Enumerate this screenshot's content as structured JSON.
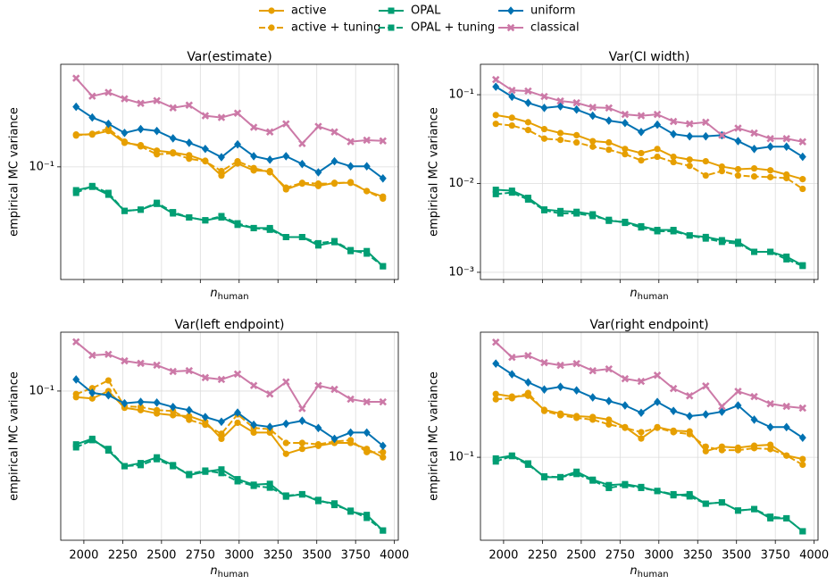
{
  "chart_data": [
    {
      "type": "line",
      "title": "Var(estimate)",
      "xlabel": [
        "n",
        "human"
      ],
      "ylabel": "empirical MC variance",
      "log_y": true,
      "grid": true,
      "show_xtick_labels": false,
      "x": [
        1950,
        2054,
        2158,
        2262,
        2366,
        2470,
        2574,
        2678,
        2782,
        2886,
        2990,
        3094,
        3198,
        3302,
        3406,
        3510,
        3614,
        3718,
        3822,
        3926
      ],
      "xlim": [
        1851,
        4025
      ],
      "xticks": [
        2000,
        2250,
        2500,
        2750,
        3000,
        3250,
        3500,
        3750,
        4000
      ],
      "ylim": [
        0.0145,
        0.58
      ],
      "yticks": [
        {
          "value": 0.1,
          "label": "10⁻¹"
        }
      ],
      "series": [
        {
          "name": "active",
          "color": "#e69f00",
          "linestyle": "solid",
          "marker": "circle",
          "values": [
            0.174,
            0.174,
            0.185,
            0.151,
            0.145,
            0.132,
            0.128,
            0.122,
            0.111,
            0.086,
            0.106,
            0.094,
            0.093,
            0.068,
            0.075,
            0.072,
            0.076,
            0.076,
            0.066,
            0.06
          ]
        },
        {
          "name": "active + tuning",
          "color": "#e69f00",
          "linestyle": "dashed",
          "marker": "circle",
          "values": [
            0.171,
            0.176,
            0.193,
            0.154,
            0.142,
            0.124,
            0.126,
            0.115,
            0.11,
            0.093,
            0.11,
            0.098,
            0.091,
            0.07,
            0.076,
            0.075,
            0.075,
            0.077,
            0.066,
            0.058
          ]
        },
        {
          "name": "OPAL",
          "color": "#009e73",
          "linestyle": "solid",
          "marker": "square",
          "values": [
            0.067,
            0.071,
            0.062,
            0.047,
            0.048,
            0.053,
            0.045,
            0.042,
            0.04,
            0.042,
            0.037,
            0.035,
            0.035,
            0.03,
            0.03,
            0.026,
            0.0275,
            0.0236,
            0.0236,
            0.0182
          ]
        },
        {
          "name": "OPAL + tuning",
          "color": "#009e73",
          "linestyle": "dashed",
          "marker": "square",
          "values": [
            0.064,
            0.072,
            0.064,
            0.047,
            0.048,
            0.054,
            0.046,
            0.042,
            0.04,
            0.043,
            0.038,
            0.035,
            0.034,
            0.03,
            0.03,
            0.027,
            0.028,
            0.024,
            0.0226,
            0.0182
          ]
        },
        {
          "name": "uniform",
          "color": "#0072b2",
          "linestyle": "solid",
          "marker": "diamond",
          "values": [
            0.28,
            0.233,
            0.209,
            0.179,
            0.191,
            0.185,
            0.163,
            0.151,
            0.136,
            0.118,
            0.147,
            0.12,
            0.113,
            0.12,
            0.105,
            0.091,
            0.11,
            0.101,
            0.101,
            0.082
          ]
        },
        {
          "name": "classical",
          "color": "#cc79a7",
          "linestyle": "solid",
          "marker": "x",
          "values": [
            0.457,
            0.336,
            0.358,
            0.321,
            0.297,
            0.311,
            0.275,
            0.288,
            0.24,
            0.233,
            0.251,
            0.197,
            0.182,
            0.209,
            0.149,
            0.2,
            0.182,
            0.154,
            0.158,
            0.156
          ]
        }
      ]
    },
    {
      "type": "line",
      "title": "Var(CI width)",
      "xlabel": [
        "n",
        "human"
      ],
      "ylabel": "empirical MC variance",
      "log_y": true,
      "grid": true,
      "show_xtick_labels": false,
      "x": [
        1950,
        2054,
        2158,
        2262,
        2366,
        2470,
        2574,
        2678,
        2782,
        2886,
        2990,
        3094,
        3198,
        3302,
        3406,
        3510,
        3614,
        3718,
        3822,
        3926
      ],
      "xlim": [
        1851,
        4025
      ],
      "xticks": [
        2000,
        2250,
        2500,
        2750,
        3000,
        3250,
        3500,
        3750,
        4000
      ],
      "ylim": [
        0.00083,
        0.22
      ],
      "yticks": [
        {
          "value": 0.001,
          "label": "10⁻³"
        },
        {
          "value": 0.01,
          "label": "10⁻²"
        },
        {
          "value": 0.1,
          "label": "10⁻¹"
        }
      ],
      "series": [
        {
          "name": "active",
          "color": "#e69f00",
          "linestyle": "solid",
          "marker": "circle",
          "values": [
            0.059,
            0.055,
            0.049,
            0.041,
            0.037,
            0.035,
            0.03,
            0.029,
            0.0245,
            0.022,
            0.0245,
            0.02,
            0.0186,
            0.0178,
            0.0155,
            0.0145,
            0.0148,
            0.0141,
            0.0126,
            0.0112
          ]
        },
        {
          "name": "active + tuning",
          "color": "#e69f00",
          "linestyle": "dashed",
          "marker": "circle",
          "values": [
            0.047,
            0.045,
            0.04,
            0.032,
            0.031,
            0.029,
            0.026,
            0.024,
            0.0214,
            0.0182,
            0.02,
            0.0174,
            0.0158,
            0.0123,
            0.0138,
            0.0123,
            0.012,
            0.0118,
            0.0115,
            0.0087
          ]
        },
        {
          "name": "OPAL",
          "color": "#009e73",
          "linestyle": "solid",
          "marker": "square",
          "values": [
            0.0085,
            0.0083,
            0.0069,
            0.0051,
            0.0049,
            0.0048,
            0.0045,
            0.0038,
            0.0037,
            0.0033,
            0.003,
            0.003,
            0.0026,
            0.0025,
            0.0023,
            0.0022,
            0.0017,
            0.0017,
            0.0015,
            0.0012
          ]
        },
        {
          "name": "OPAL + tuning",
          "color": "#009e73",
          "linestyle": "dashed",
          "marker": "square",
          "values": [
            0.0076,
            0.0079,
            0.0066,
            0.005,
            0.0046,
            0.0046,
            0.0043,
            0.0039,
            0.0036,
            0.0032,
            0.0029,
            0.0029,
            0.0026,
            0.0024,
            0.0022,
            0.0021,
            0.0017,
            0.0017,
            0.0014,
            0.00118
          ]
        },
        {
          "name": "uniform",
          "color": "#0072b2",
          "linestyle": "solid",
          "marker": "diamond",
          "values": [
            0.123,
            0.095,
            0.081,
            0.071,
            0.074,
            0.068,
            0.058,
            0.051,
            0.048,
            0.038,
            0.046,
            0.036,
            0.034,
            0.034,
            0.035,
            0.03,
            0.0245,
            0.026,
            0.026,
            0.02
          ]
        },
        {
          "name": "classical",
          "color": "#cc79a7",
          "linestyle": "solid",
          "marker": "x",
          "values": [
            0.148,
            0.112,
            0.11,
            0.0955,
            0.085,
            0.081,
            0.072,
            0.071,
            0.06,
            0.058,
            0.06,
            0.05,
            0.047,
            0.049,
            0.035,
            0.042,
            0.037,
            0.032,
            0.032,
            0.0295
          ]
        }
      ]
    },
    {
      "type": "line",
      "title": "Var(left endpoint)",
      "xlabel": [
        "n",
        "human"
      ],
      "ylabel": "empirical MC variance",
      "log_y": true,
      "grid": true,
      "show_xtick_labels": true,
      "x": [
        1950,
        2054,
        2158,
        2262,
        2366,
        2470,
        2574,
        2678,
        2782,
        2886,
        2990,
        3094,
        3198,
        3302,
        3406,
        3510,
        3614,
        3718,
        3822,
        3926
      ],
      "xlim": [
        1851,
        4025
      ],
      "xticks": [
        2000,
        2250,
        2500,
        2750,
        3000,
        3250,
        3500,
        3750,
        4000
      ],
      "ylim": [
        0.0077,
        0.275
      ],
      "yticks": [
        {
          "value": 0.1,
          "label": "10⁻¹"
        }
      ],
      "series": [
        {
          "name": "active",
          "color": "#e69f00",
          "linestyle": "solid",
          "marker": "circle",
          "values": [
            0.09,
            0.088,
            0.1,
            0.075,
            0.072,
            0.068,
            0.066,
            0.065,
            0.059,
            0.044,
            0.058,
            0.049,
            0.049,
            0.034,
            0.037,
            0.039,
            0.041,
            0.041,
            0.037,
            0.032
          ]
        },
        {
          "name": "active + tuning",
          "color": "#e69f00",
          "linestyle": "dashed",
          "marker": "circle",
          "values": [
            0.095,
            0.105,
            0.12,
            0.077,
            0.076,
            0.072,
            0.071,
            0.061,
            0.056,
            0.048,
            0.067,
            0.053,
            0.052,
            0.041,
            0.041,
            0.04,
            0.042,
            0.043,
            0.035,
            0.035
          ]
        },
        {
          "name": "OPAL",
          "color": "#009e73",
          "linestyle": "solid",
          "marker": "square",
          "values": [
            0.04,
            0.044,
            0.036,
            0.0275,
            0.029,
            0.032,
            0.028,
            0.0236,
            0.025,
            0.026,
            0.022,
            0.02,
            0.0203,
            0.0163,
            0.017,
            0.0151,
            0.0145,
            0.0126,
            0.0119,
            0.0091
          ]
        },
        {
          "name": "OPAL + tuning",
          "color": "#009e73",
          "linestyle": "dashed",
          "marker": "square",
          "values": [
            0.038,
            0.043,
            0.037,
            0.0275,
            0.028,
            0.031,
            0.0275,
            0.024,
            0.0255,
            0.0244,
            0.0212,
            0.0196,
            0.019,
            0.0166,
            0.0169,
            0.0154,
            0.0141,
            0.0128,
            0.0113,
            0.0091
          ]
        },
        {
          "name": "uniform",
          "color": "#0072b2",
          "linestyle": "solid",
          "marker": "diamond",
          "values": [
            0.122,
            0.097,
            0.093,
            0.081,
            0.083,
            0.082,
            0.076,
            0.072,
            0.064,
            0.059,
            0.069,
            0.056,
            0.054,
            0.057,
            0.06,
            0.053,
            0.044,
            0.049,
            0.049,
            0.039
          ]
        },
        {
          "name": "classical",
          "color": "#cc79a7",
          "linestyle": "solid",
          "marker": "x",
          "values": [
            0.233,
            0.185,
            0.188,
            0.168,
            0.161,
            0.156,
            0.14,
            0.142,
            0.126,
            0.122,
            0.134,
            0.11,
            0.095,
            0.117,
            0.074,
            0.11,
            0.103,
            0.087,
            0.083,
            0.083
          ]
        }
      ]
    },
    {
      "type": "line",
      "title": "Var(right endpoint)",
      "xlabel": [
        "n",
        "human"
      ],
      "ylabel": "empirical MC variance",
      "log_y": true,
      "grid": true,
      "show_xtick_labels": true,
      "x": [
        1950,
        2054,
        2158,
        2262,
        2366,
        2470,
        2574,
        2678,
        2782,
        2886,
        2990,
        3094,
        3198,
        3302,
        3406,
        3510,
        3614,
        3718,
        3822,
        3926
      ],
      "xlim": [
        1851,
        4025
      ],
      "xticks": [
        2000,
        2250,
        2500,
        2750,
        3000,
        3250,
        3500,
        3750,
        4000
      ],
      "ylim": [
        0.024,
        0.86
      ],
      "yticks": [
        {
          "value": 0.1,
          "label": "10⁻¹"
        }
      ],
      "series": [
        {
          "name": "active",
          "color": "#e69f00",
          "linestyle": "solid",
          "marker": "circle",
          "values": [
            0.297,
            0.284,
            0.288,
            0.226,
            0.212,
            0.203,
            0.2,
            0.191,
            0.168,
            0.138,
            0.168,
            0.158,
            0.156,
            0.111,
            0.12,
            0.118,
            0.122,
            0.124,
            0.103,
            0.097
          ]
        },
        {
          "name": "active + tuning",
          "color": "#e69f00",
          "linestyle": "dashed",
          "marker": "circle",
          "values": [
            0.271,
            0.276,
            0.302,
            0.222,
            0.206,
            0.197,
            0.191,
            0.176,
            0.166,
            0.154,
            0.166,
            0.154,
            0.149,
            0.12,
            0.113,
            0.113,
            0.117,
            0.115,
            0.103,
            0.088
          ]
        },
        {
          "name": "OPAL",
          "color": "#009e73",
          "linestyle": "solid",
          "marker": "square",
          "values": [
            0.098,
            0.103,
            0.09,
            0.071,
            0.071,
            0.078,
            0.068,
            0.062,
            0.063,
            0.06,
            0.056,
            0.052,
            0.053,
            0.045,
            0.046,
            0.04,
            0.041,
            0.035,
            0.035,
            0.028
          ]
        },
        {
          "name": "OPAL + tuning",
          "color": "#009e73",
          "linestyle": "dashed",
          "marker": "square",
          "values": [
            0.093,
            0.102,
            0.088,
            0.072,
            0.071,
            0.075,
            0.067,
            0.059,
            0.062,
            0.059,
            0.056,
            0.053,
            0.051,
            0.045,
            0.046,
            0.04,
            0.041,
            0.036,
            0.035,
            0.028
          ]
        },
        {
          "name": "uniform",
          "color": "#0072b2",
          "linestyle": "solid",
          "marker": "diamond",
          "values": [
            0.501,
            0.417,
            0.363,
            0.321,
            0.336,
            0.316,
            0.28,
            0.263,
            0.244,
            0.215,
            0.259,
            0.222,
            0.203,
            0.209,
            0.219,
            0.244,
            0.191,
            0.168,
            0.168,
            0.14
          ]
        },
        {
          "name": "classical",
          "color": "#cc79a7",
          "linestyle": "solid",
          "marker": "x",
          "values": [
            0.724,
            0.558,
            0.575,
            0.509,
            0.486,
            0.501,
            0.443,
            0.457,
            0.386,
            0.369,
            0.41,
            0.326,
            0.288,
            0.341,
            0.24,
            0.311,
            0.284,
            0.251,
            0.24,
            0.233
          ]
        }
      ]
    }
  ]
}
